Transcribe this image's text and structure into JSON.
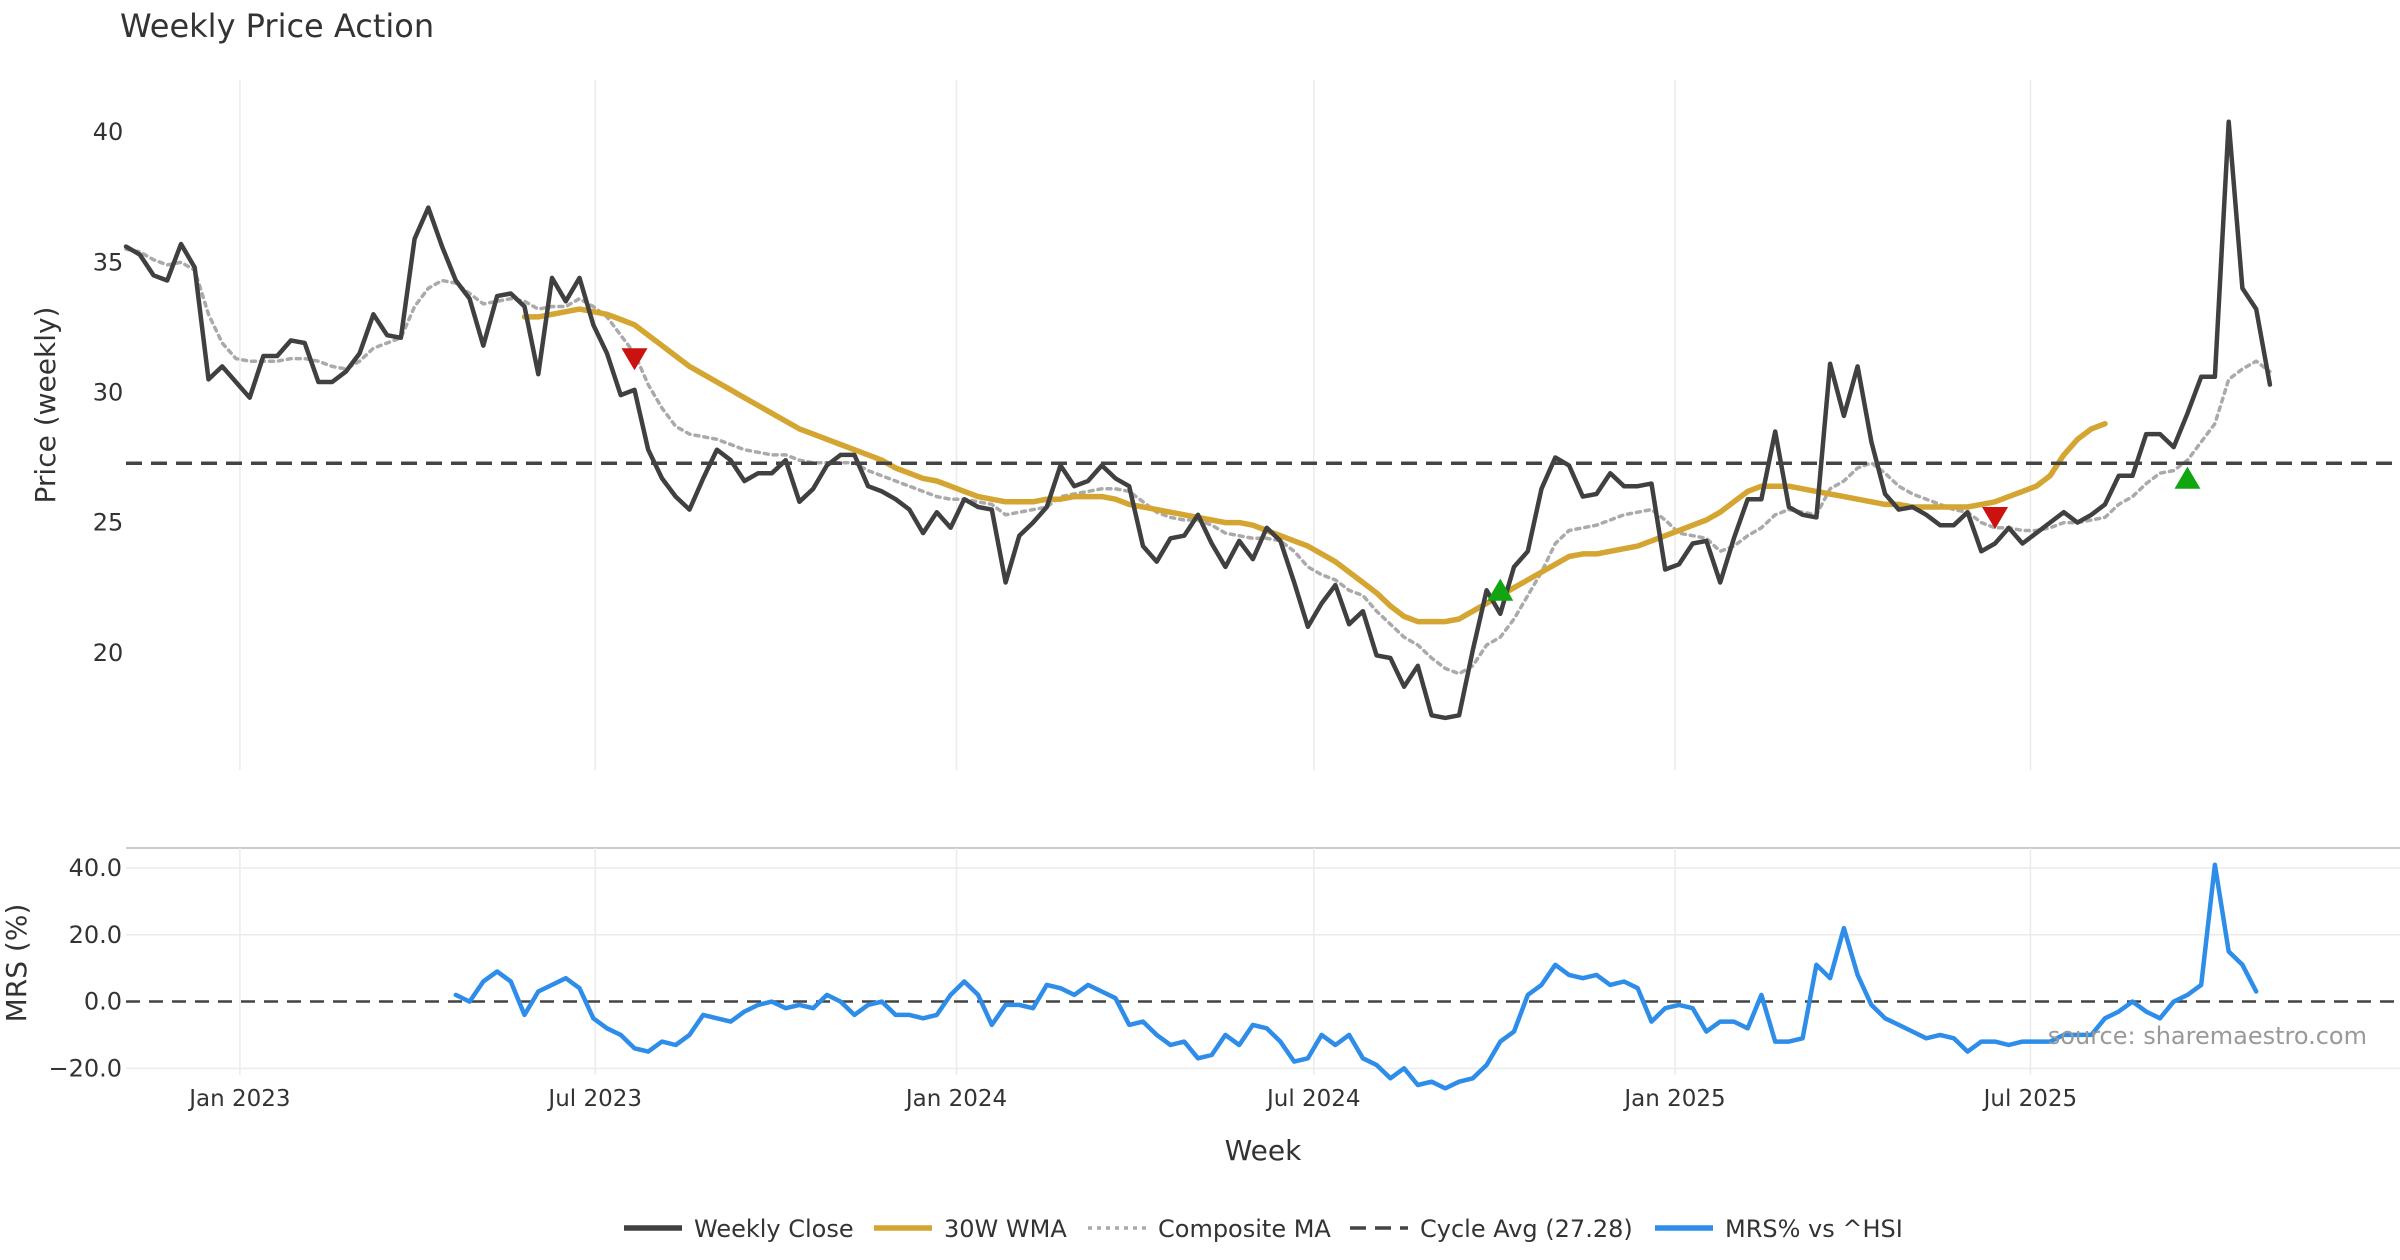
{
  "chart_data": [
    {
      "type": "line",
      "title": "Weekly Price Action",
      "ylabel": "Price (weekly)",
      "xlabel": "",
      "ylim": [
        15.5,
        42.0
      ],
      "yticks": [
        20,
        25,
        30,
        35,
        40
      ],
      "x_start": "2022-11-04",
      "x_step_days": 7,
      "series": [
        {
          "name": "Weekly Close",
          "color": "#404040",
          "style": "solid",
          "values": [
            35.6,
            35.3,
            34.5,
            34.3,
            35.7,
            34.8,
            30.5,
            31.0,
            30.4,
            29.8,
            31.4,
            31.4,
            32.0,
            31.9,
            30.4,
            30.4,
            30.8,
            31.5,
            33.0,
            32.2,
            32.1,
            35.9,
            37.1,
            35.6,
            34.3,
            33.6,
            31.8,
            33.7,
            33.8,
            33.3,
            30.7,
            34.4,
            33.5,
            34.4,
            32.6,
            31.5,
            29.9,
            30.1,
            27.8,
            26.7,
            26.0,
            25.5,
            26.7,
            27.8,
            27.4,
            26.6,
            26.9,
            26.9,
            27.4,
            25.8,
            26.3,
            27.2,
            27.6,
            27.6,
            26.4,
            26.2,
            25.9,
            25.5,
            24.6,
            25.4,
            24.8,
            25.9,
            25.6,
            25.5,
            22.7,
            24.5,
            25.0,
            25.6,
            27.2,
            26.4,
            26.6,
            27.2,
            26.7,
            26.4,
            24.1,
            23.5,
            24.4,
            24.5,
            25.3,
            24.2,
            23.3,
            24.3,
            23.6,
            24.8,
            24.3,
            22.7,
            21.0,
            21.9,
            22.6,
            21.1,
            21.6,
            19.9,
            19.8,
            18.7,
            19.5,
            17.6,
            17.5,
            17.6,
            20.1,
            22.4,
            21.5,
            23.3,
            23.9,
            26.3,
            27.5,
            27.2,
            26.0,
            26.1,
            26.9,
            26.4,
            26.4,
            26.5,
            23.2,
            23.4,
            24.2,
            24.3,
            22.7,
            24.4,
            25.9,
            25.9,
            28.5,
            25.6,
            25.3,
            25.2,
            31.1,
            29.1,
            31.0,
            28.1,
            26.1,
            25.5,
            25.6,
            25.3,
            24.9,
            24.9,
            25.4,
            23.9,
            24.2,
            24.8,
            24.2,
            24.6,
            25.0,
            25.4,
            25.0,
            25.3,
            25.7,
            26.8,
            26.8,
            28.4,
            28.4,
            27.9,
            29.2,
            30.6,
            30.6,
            40.4,
            34.0,
            33.2,
            30.3
          ]
        },
        {
          "name": "30W WMA",
          "color": "#D4A531",
          "style": "solid",
          "start_index": 29,
          "values": [
            32.9,
            32.9,
            33.0,
            33.1,
            33.2,
            33.1,
            33.0,
            32.8,
            32.6,
            32.2,
            31.8,
            31.4,
            31.0,
            30.7,
            30.4,
            30.1,
            29.8,
            29.5,
            29.2,
            28.9,
            28.6,
            28.4,
            28.2,
            28.0,
            27.8,
            27.6,
            27.4,
            27.1,
            26.9,
            26.7,
            26.6,
            26.4,
            26.2,
            26.0,
            25.9,
            25.8,
            25.8,
            25.8,
            25.9,
            25.9,
            26.0,
            26.0,
            26.0,
            25.9,
            25.7,
            25.6,
            25.5,
            25.4,
            25.3,
            25.2,
            25.1,
            25.0,
            25.0,
            24.9,
            24.7,
            24.5,
            24.3,
            24.1,
            23.8,
            23.5,
            23.1,
            22.7,
            22.3,
            21.8,
            21.4,
            21.2,
            21.2,
            21.2,
            21.3,
            21.6,
            21.9,
            22.2,
            22.5,
            22.8,
            23.1,
            23.4,
            23.7,
            23.8,
            23.8,
            23.9,
            24.0,
            24.1,
            24.3,
            24.5,
            24.7,
            24.9,
            25.1,
            25.4,
            25.8,
            26.2,
            26.4,
            26.4,
            26.4,
            26.3,
            26.2,
            26.1,
            26.0,
            25.9,
            25.8,
            25.7,
            25.7,
            25.6,
            25.6,
            25.6,
            25.6,
            25.6,
            25.7,
            25.8,
            26.0,
            26.2,
            26.4,
            26.8,
            27.6,
            28.2,
            28.6,
            28.8
          ]
        },
        {
          "name": "Composite MA",
          "color": "#AAAAAA",
          "style": "dotted",
          "values": [
            35.5,
            35.4,
            35.1,
            34.9,
            35.0,
            34.7,
            33.0,
            31.9,
            31.3,
            31.2,
            31.2,
            31.2,
            31.3,
            31.3,
            31.2,
            31.0,
            30.9,
            31.2,
            31.7,
            31.9,
            32.1,
            33.3,
            34.0,
            34.3,
            34.2,
            33.8,
            33.4,
            33.5,
            33.6,
            33.5,
            33.2,
            33.3,
            33.3,
            33.6,
            33.3,
            32.9,
            32.2,
            31.5,
            30.3,
            29.4,
            28.7,
            28.4,
            28.3,
            28.2,
            28.0,
            27.8,
            27.7,
            27.6,
            27.6,
            27.4,
            27.3,
            27.3,
            27.3,
            27.3,
            27.0,
            26.8,
            26.6,
            26.4,
            26.2,
            26.0,
            25.9,
            25.9,
            25.8,
            25.7,
            25.3,
            25.4,
            25.5,
            25.6,
            26.0,
            26.1,
            26.2,
            26.3,
            26.3,
            26.2,
            25.8,
            25.4,
            25.2,
            25.1,
            25.1,
            24.9,
            24.6,
            24.5,
            24.4,
            24.4,
            24.3,
            23.9,
            23.3,
            23.0,
            22.8,
            22.4,
            22.2,
            21.6,
            21.1,
            20.6,
            20.3,
            19.8,
            19.4,
            19.2,
            19.5,
            20.3,
            20.6,
            21.3,
            22.2,
            23.1,
            24.2,
            24.7,
            24.8,
            24.9,
            25.1,
            25.3,
            25.4,
            25.5,
            25.1,
            24.6,
            24.5,
            24.4,
            23.9,
            24.1,
            24.5,
            24.8,
            25.3,
            25.5,
            25.4,
            25.3,
            26.3,
            26.6,
            27.1,
            27.3,
            26.9,
            26.4,
            26.1,
            25.9,
            25.7,
            25.5,
            25.4,
            25.0,
            24.8,
            24.8,
            24.7,
            24.7,
            24.8,
            25.0,
            25.0,
            25.1,
            25.2,
            25.7,
            26.0,
            26.5,
            26.9,
            27.0,
            27.4,
            28.1,
            28.8,
            30.5,
            30.9,
            31.2,
            30.8
          ]
        },
        {
          "name": "Cycle Avg (27.28)",
          "color": "#444444",
          "style": "dashed",
          "constant": 27.28
        }
      ],
      "markers": [
        {
          "type": "sell",
          "index": 37,
          "value": 31.3,
          "color": "#CC1111"
        },
        {
          "type": "buy",
          "index": 100,
          "value": 22.4,
          "color": "#11A611"
        },
        {
          "type": "sell",
          "index": 136,
          "value": 25.2,
          "color": "#CC1111"
        },
        {
          "type": "buy",
          "index": 150,
          "value": 26.7,
          "color": "#11A611"
        }
      ]
    },
    {
      "type": "line",
      "title": "",
      "ylabel": "MRS (%)",
      "xlabel": "Week",
      "ylim": [
        -22,
        46
      ],
      "yticks": [
        -20.0,
        0.0,
        20.0,
        40.0
      ],
      "ytick_labels": [
        "−20.0",
        "0.0",
        "20.0",
        "40.0"
      ],
      "zero_line": 0,
      "x_ticks": [
        "Jan 2023",
        "Jul 2023",
        "Jan 2024",
        "Jul 2024",
        "Jan 2025",
        "Jul 2025"
      ],
      "x_tick_dates": [
        "2023-01-01",
        "2023-07-01",
        "2024-01-01",
        "2024-07-01",
        "2025-01-01",
        "2025-07-01"
      ],
      "x_range": [
        "2022-11-04",
        "2025-12-22"
      ],
      "series": [
        {
          "name": "MRS% vs ^HSI",
          "color": "#2E8DE8",
          "style": "solid",
          "start_index": 24,
          "values": [
            2,
            0,
            6,
            9,
            6,
            -4,
            3,
            5,
            7,
            4,
            -5,
            -8,
            -10,
            -14,
            -15,
            -12,
            -13,
            -10,
            -4,
            -5,
            -6,
            -3,
            -1,
            0,
            -2,
            -1,
            -2,
            2,
            0,
            -4,
            -1,
            0,
            -4,
            -4,
            -5,
            -4,
            2,
            6,
            2,
            -7,
            -1,
            -1,
            -2,
            5,
            4,
            2,
            5,
            3,
            1,
            -7,
            -6,
            -10,
            -13,
            -12,
            -17,
            -16,
            -10,
            -13,
            -7,
            -8,
            -12,
            -18,
            -17,
            -10,
            -13,
            -10,
            -17,
            -19,
            -23,
            -20,
            -25,
            -24,
            -26,
            -24,
            -23,
            -19,
            -12,
            -9,
            2,
            5,
            11,
            8,
            7,
            8,
            5,
            6,
            4,
            -6,
            -2,
            -1,
            -2,
            -9,
            -6,
            -6,
            -8,
            2,
            -12,
            -12,
            -11,
            11,
            7,
            22,
            8,
            -1,
            -5,
            -7,
            -9,
            -11,
            -10,
            -11,
            -15,
            -12,
            -12,
            -13,
            -12,
            -12,
            -12,
            -10,
            -10,
            -10,
            -5,
            -3,
            0,
            -3,
            -5,
            0,
            2,
            5,
            41,
            15,
            11,
            3
          ]
        }
      ]
    }
  ],
  "legend": [
    {
      "label": "Weekly Close",
      "color": "#404040",
      "style": "solid"
    },
    {
      "label": "30W WMA",
      "color": "#D4A531",
      "style": "solid"
    },
    {
      "label": "Composite MA",
      "color": "#AAAAAA",
      "style": "dotted"
    },
    {
      "label": "Cycle Avg (27.28)",
      "color": "#444444",
      "style": "dashed"
    },
    {
      "label": "MRS% vs ^HSI",
      "color": "#2E8DE8",
      "style": "solid"
    }
  ],
  "source_text": "source: sharemaestro.com"
}
